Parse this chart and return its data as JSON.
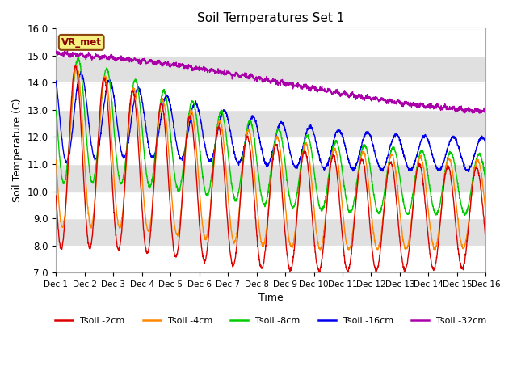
{
  "title": "Soil Temperatures Set 1",
  "xlabel": "Time",
  "ylabel": "Soil Temperature (C)",
  "ylim": [
    7.0,
    16.0
  ],
  "yticks": [
    7.0,
    8.0,
    9.0,
    10.0,
    11.0,
    12.0,
    13.0,
    14.0,
    15.0,
    16.0
  ],
  "xtick_labels": [
    "Dec 1",
    "Dec 2",
    "Dec 3",
    "Dec 4",
    "Dec 5",
    "Dec 6",
    "Dec 7",
    "Dec 8",
    "Dec 9",
    "Dec 10",
    "Dec 11",
    "Dec 12",
    "Dec 13",
    "Dec 14",
    "Dec 15",
    "Dec 16"
  ],
  "vr_met_label": "VR_met",
  "line_colors": {
    "2cm": "#dd0000",
    "4cm": "#ff8800",
    "8cm": "#00cc00",
    "16cm": "#0000ee",
    "32cm": "#aa00aa"
  },
  "legend_labels": [
    "Tsoil -2cm",
    "Tsoil -4cm",
    "Tsoil -8cm",
    "Tsoil -16cm",
    "Tsoil -32cm"
  ],
  "fig_bg": "#ffffff",
  "ax_bg": "#e8e8e8",
  "band_even": "#ffffff",
  "band_odd": "#e0e0e0"
}
